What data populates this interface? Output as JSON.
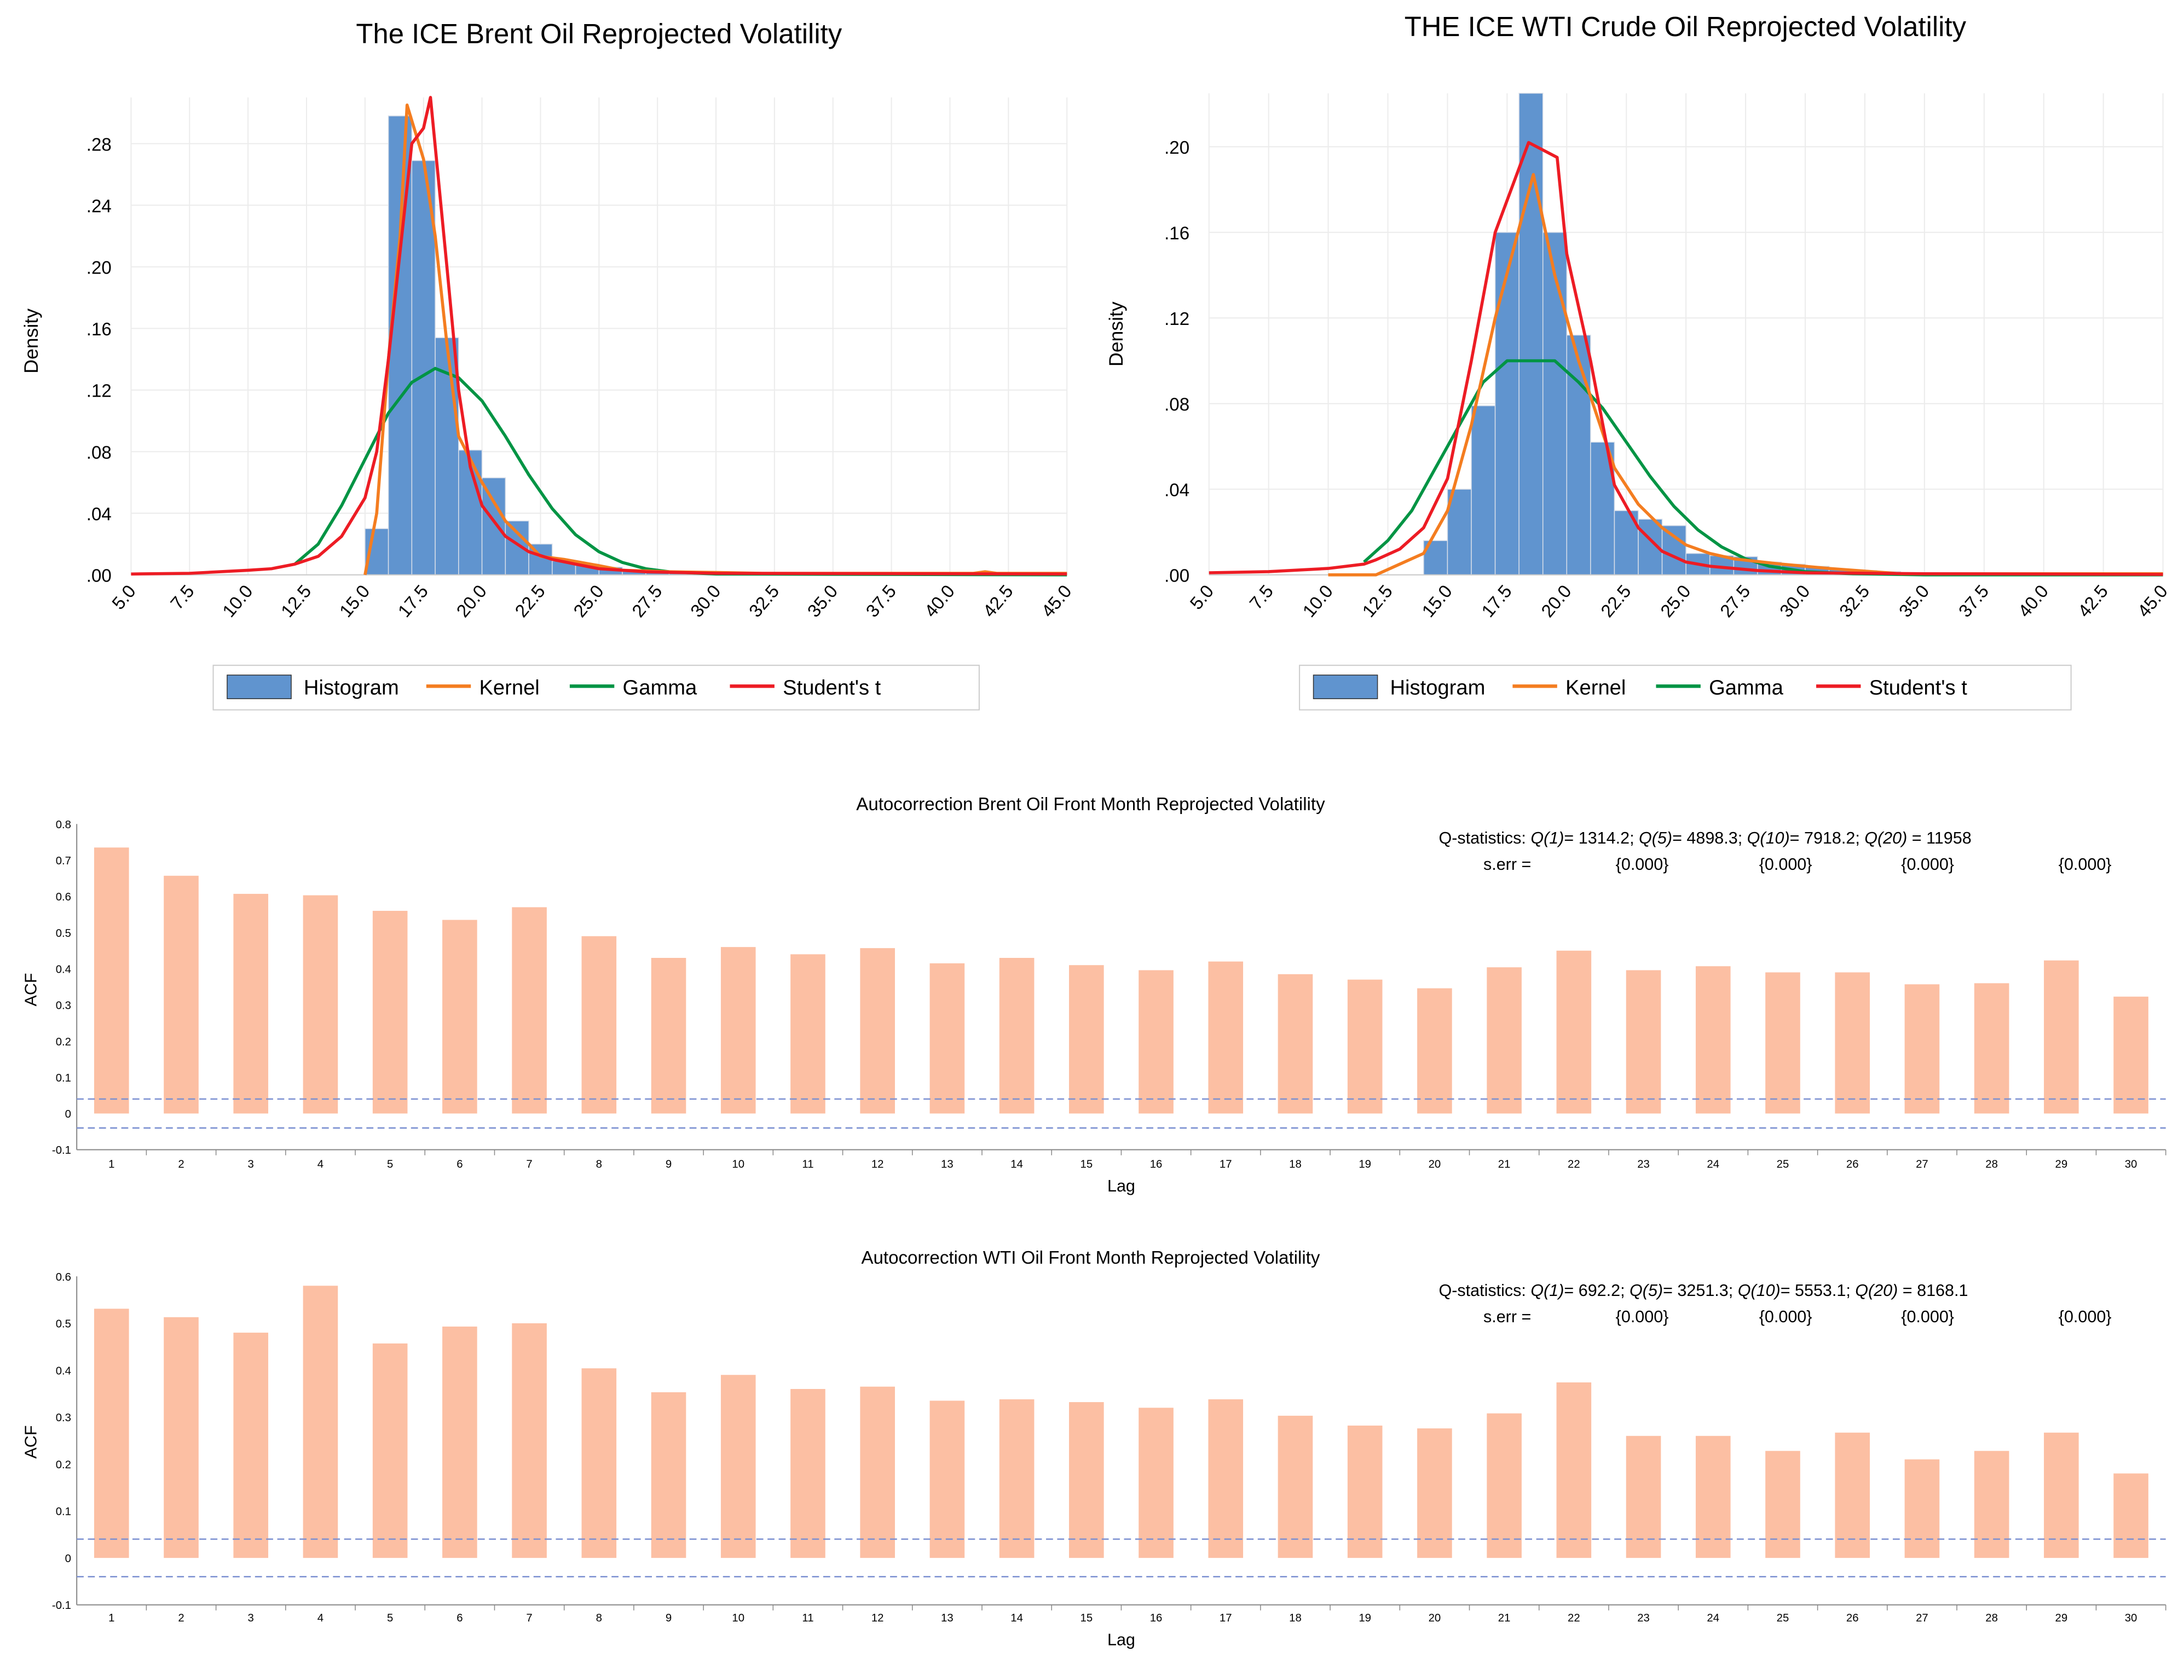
{
  "colors": {
    "histogram": "#6094cf",
    "kernel": "#f47d20",
    "gamma": "#009444",
    "student_t": "#ed1c24",
    "acf_bar": "#fcbfa3",
    "band": "#7a8fd1"
  },
  "chart_data": [
    {
      "type": "histogram",
      "title": "The ICE Brent Oil Reprojected Volatility",
      "xlabel": "",
      "ylabel": "Density",
      "xlim": [
        5,
        45
      ],
      "ylim": [
        0,
        0.31
      ],
      "xticks": [
        "5.0",
        "7.5",
        "10.0",
        "12.5",
        "15.0",
        "17.5",
        "20.0",
        "22.5",
        "25.0",
        "27.5",
        "30.0",
        "32.5",
        "35.0",
        "37.5",
        "40.0",
        "42.5",
        "45.0"
      ],
      "yticks": [
        ".00",
        ".04",
        ".08",
        ".12",
        ".16",
        ".20",
        ".24",
        ".28"
      ],
      "legend": [
        "Histogram",
        "Kernel",
        "Gamma",
        "Student's t"
      ],
      "legend_position": "bottom",
      "bins": {
        "start": 15,
        "width": 1,
        "values": [
          0.03,
          0.298,
          0.269,
          0.154,
          0.081,
          0.063,
          0.035,
          0.02,
          0.009,
          0.007,
          0.005,
          0.003,
          0.002,
          0.001,
          0.001
        ]
      },
      "series": [
        {
          "name": "Kernel",
          "points": [
            [
              15,
              0
            ],
            [
              15.5,
              0.04
            ],
            [
              16,
              0.14
            ],
            [
              16.5,
              0.22
            ],
            [
              16.8,
              0.305
            ],
            [
              17.5,
              0.27
            ],
            [
              18,
              0.22
            ],
            [
              18.5,
              0.15
            ],
            [
              19,
              0.09
            ],
            [
              19.5,
              0.075
            ],
            [
              20,
              0.06
            ],
            [
              21,
              0.035
            ],
            [
              22,
              0.02
            ],
            [
              22.5,
              0.012
            ],
            [
              23.5,
              0.01
            ],
            [
              25,
              0.006
            ],
            [
              26,
              0.003
            ],
            [
              28,
              0.002
            ],
            [
              30,
              0.0015
            ],
            [
              32,
              0.001
            ],
            [
              35,
              0.001
            ],
            [
              41,
              0.001
            ],
            [
              41.5,
              0.002
            ],
            [
              42,
              0.001
            ],
            [
              45,
              0.001
            ]
          ]
        },
        {
          "name": "Gamma",
          "points": [
            [
              12,
              0.007
            ],
            [
              13,
              0.02
            ],
            [
              14,
              0.045
            ],
            [
              15,
              0.075
            ],
            [
              16,
              0.105
            ],
            [
              17,
              0.125
            ],
            [
              18,
              0.134
            ],
            [
              19,
              0.128
            ],
            [
              20,
              0.113
            ],
            [
              21,
              0.09
            ],
            [
              22,
              0.065
            ],
            [
              23,
              0.043
            ],
            [
              24,
              0.026
            ],
            [
              25,
              0.015
            ],
            [
              26,
              0.008
            ],
            [
              27,
              0.004
            ],
            [
              28,
              0.002
            ],
            [
              30,
              0.0005
            ],
            [
              45,
              0
            ]
          ]
        },
        {
          "name": "Student's t",
          "points": [
            [
              5,
              0.0005
            ],
            [
              7.5,
              0.001
            ],
            [
              10,
              0.003
            ],
            [
              11,
              0.004
            ],
            [
              12,
              0.007
            ],
            [
              13,
              0.012
            ],
            [
              14,
              0.025
            ],
            [
              15,
              0.05
            ],
            [
              15.5,
              0.08
            ],
            [
              16,
              0.14
            ],
            [
              16.5,
              0.21
            ],
            [
              17,
              0.28
            ],
            [
              17.5,
              0.29
            ],
            [
              17.8,
              0.31
            ],
            [
              18.5,
              0.2
            ],
            [
              19,
              0.12
            ],
            [
              19.5,
              0.07
            ],
            [
              20,
              0.045
            ],
            [
              21,
              0.025
            ],
            [
              22,
              0.015
            ],
            [
              23,
              0.01
            ],
            [
              24,
              0.007
            ],
            [
              25,
              0.004
            ],
            [
              27,
              0.002
            ],
            [
              30,
              0.001
            ],
            [
              45,
              0.0005
            ]
          ]
        }
      ]
    },
    {
      "type": "histogram",
      "title": "THE ICE WTI Crude Oil Reprojected Volatility",
      "xlabel": "",
      "ylabel": "Density",
      "xlim": [
        5,
        45
      ],
      "ylim": [
        0,
        0.225
      ],
      "xticks": [
        "5.0",
        "7.5",
        "10.0",
        "12.5",
        "15.0",
        "17.5",
        "20.0",
        "22.5",
        "25.0",
        "27.5",
        "30.0",
        "32.5",
        "35.0",
        "37.5",
        "40.0",
        "42.5",
        "45.0"
      ],
      "yticks": [
        ".00",
        ".04",
        ".08",
        ".12",
        ".16",
        ".20"
      ],
      "legend": [
        "Histogram",
        "Kernel",
        "Gamma",
        "Student's t"
      ],
      "legend_position": "bottom",
      "bins": {
        "start": 14,
        "width": 1,
        "values": [
          0.016,
          0.04,
          0.079,
          0.16,
          0.226,
          0.16,
          0.112,
          0.062,
          0.03,
          0.026,
          0.023,
          0.01,
          0.009,
          0.0085,
          0.006,
          0.005,
          0.004,
          0.0026,
          0.002,
          0.0015
        ]
      },
      "series": [
        {
          "name": "Kernel",
          "points": [
            [
              10,
              0
            ],
            [
              12,
              0
            ],
            [
              14,
              0.01
            ],
            [
              15,
              0.03
            ],
            [
              16,
              0.07
            ],
            [
              17,
              0.12
            ],
            [
              18.6,
              0.187
            ],
            [
              19.5,
              0.14
            ],
            [
              20.5,
              0.1
            ],
            [
              22,
              0.05
            ],
            [
              23,
              0.033
            ],
            [
              24,
              0.022
            ],
            [
              25,
              0.014
            ],
            [
              26,
              0.01
            ],
            [
              27,
              0.0075
            ],
            [
              29,
              0.005
            ],
            [
              31,
              0.003
            ],
            [
              34,
              0.0005
            ],
            [
              45,
              0.0005
            ]
          ]
        },
        {
          "name": "Gamma",
          "points": [
            [
              11.5,
              0.006
            ],
            [
              12.5,
              0.016
            ],
            [
              13.5,
              0.03
            ],
            [
              14.5,
              0.05
            ],
            [
              15.5,
              0.07
            ],
            [
              16.5,
              0.09
            ],
            [
              17.5,
              0.1
            ],
            [
              18.5,
              0.1
            ],
            [
              19.5,
              0.1
            ],
            [
              20.5,
              0.09
            ],
            [
              21.5,
              0.078
            ],
            [
              22.5,
              0.062
            ],
            [
              23.5,
              0.046
            ],
            [
              24.5,
              0.032
            ],
            [
              25.5,
              0.021
            ],
            [
              26.5,
              0.013
            ],
            [
              27.5,
              0.0075
            ],
            [
              28.5,
              0.004
            ],
            [
              30,
              0.0015
            ],
            [
              32,
              0.0005
            ],
            [
              35,
              0
            ],
            [
              45,
              0
            ]
          ]
        },
        {
          "name": "Student's t",
          "points": [
            [
              5,
              0.001
            ],
            [
              7.5,
              0.0015
            ],
            [
              10,
              0.003
            ],
            [
              11.5,
              0.005
            ],
            [
              12,
              0.007
            ],
            [
              13,
              0.012
            ],
            [
              14,
              0.022
            ],
            [
              15,
              0.045
            ],
            [
              16,
              0.1
            ],
            [
              17,
              0.16
            ],
            [
              18.4,
              0.202
            ],
            [
              19.6,
              0.195
            ],
            [
              20,
              0.15
            ],
            [
              21,
              0.1
            ],
            [
              22,
              0.042
            ],
            [
              23,
              0.022
            ],
            [
              24,
              0.011
            ],
            [
              25,
              0.006
            ],
            [
              26,
              0.004
            ],
            [
              28,
              0.002
            ],
            [
              30,
              0.001
            ],
            [
              35,
              0.0005
            ],
            [
              45,
              0.0002
            ]
          ]
        }
      ]
    },
    {
      "type": "bar",
      "title": "Autocorrection Brent Oil Front Month Reprojected Volatility",
      "xlabel": "Lag",
      "ylabel": "ACF",
      "ylim": [
        -0.1,
        0.8
      ],
      "yticks": [
        "-0.1",
        "0",
        "0.1",
        "0.2",
        "0.3",
        "0.4",
        "0.5",
        "0.6",
        "0.7",
        "0.8"
      ],
      "categories": [
        "1",
        "2",
        "3",
        "4",
        "5",
        "6",
        "7",
        "8",
        "9",
        "10",
        "11",
        "12",
        "13",
        "14",
        "15",
        "16",
        "17",
        "18",
        "19",
        "20",
        "21",
        "22",
        "23",
        "24",
        "25",
        "26",
        "27",
        "28",
        "29",
        "30"
      ],
      "values": [
        0.735,
        0.657,
        0.607,
        0.603,
        0.56,
        0.535,
        0.57,
        0.49,
        0.43,
        0.46,
        0.44,
        0.457,
        0.415,
        0.43,
        0.41,
        0.396,
        0.42,
        0.385,
        0.37,
        0.346,
        0.404,
        0.45,
        0.396,
        0.407,
        0.39,
        0.39,
        0.357,
        0.36,
        0.423,
        0.323
      ],
      "confidence_band": 0.04,
      "qstats": {
        "label": "Q-statistics:",
        "items": [
          {
            "q": "Q(1)",
            "v": "= 1314.2;"
          },
          {
            "q": "Q(5)",
            "v": "= 4898.3;"
          },
          {
            "q": "Q(10)",
            "v": "= 7918.2;"
          },
          {
            "q": "Q(20)",
            "v": " = 11958"
          }
        ],
        "serr_label": "s.err =",
        "serr": [
          "{0.000}",
          "{0.000}",
          "{0.000}",
          "{0.000}"
        ]
      }
    },
    {
      "type": "bar",
      "title": "Autocorrection WTI Oil Front Month Reprojected Volatility",
      "xlabel": "Lag",
      "ylabel": "ACF",
      "ylim": [
        -0.1,
        0.6
      ],
      "yticks": [
        "-0.1",
        "0",
        "0.1",
        "0.2",
        "0.3",
        "0.4",
        "0.5",
        "0.6"
      ],
      "categories": [
        "1",
        "2",
        "3",
        "4",
        "5",
        "6",
        "7",
        "8",
        "9",
        "10",
        "11",
        "12",
        "13",
        "14",
        "15",
        "16",
        "17",
        "18",
        "19",
        "20",
        "21",
        "22",
        "23",
        "24",
        "25",
        "26",
        "27",
        "28",
        "29",
        "30"
      ],
      "values": [
        0.531,
        0.513,
        0.48,
        0.58,
        0.457,
        0.493,
        0.5,
        0.404,
        0.353,
        0.39,
        0.36,
        0.365,
        0.335,
        0.338,
        0.332,
        0.32,
        0.338,
        0.303,
        0.282,
        0.276,
        0.308,
        0.374,
        0.26,
        0.26,
        0.228,
        0.267,
        0.21,
        0.228,
        0.267,
        0.18
      ],
      "confidence_band": 0.04,
      "qstats": {
        "label": "Q-statistics:",
        "items": [
          {
            "q": "Q(1)",
            "v": "= 692.2;"
          },
          {
            "q": "Q(5)",
            "v": "= 3251.3;"
          },
          {
            "q": "Q(10)",
            "v": "= 5553.1;"
          },
          {
            "q": "Q(20)",
            "v": " = 8168.1"
          }
        ],
        "serr_label": "s.err =",
        "serr": [
          "{0.000}",
          "{0.000}",
          "{0.000}",
          "{0.000}"
        ]
      }
    }
  ]
}
